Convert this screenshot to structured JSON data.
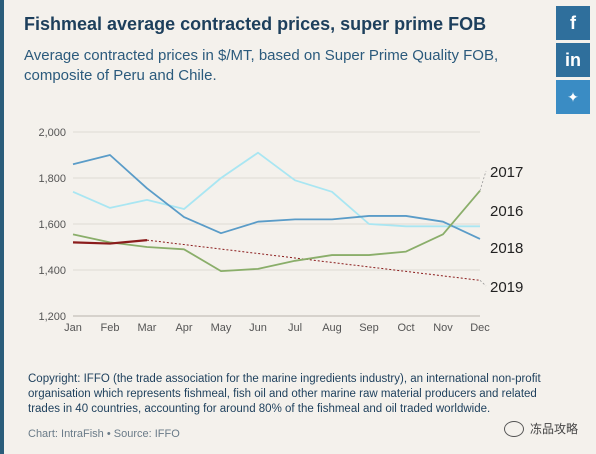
{
  "header": {
    "title": "Fishmeal average contracted prices, super prime FOB",
    "subtitle": "Average contracted prices in $/MT, based on Super Prime Quality FOB, composite of Peru and Chile."
  },
  "share": {
    "facebook": "f",
    "linkedin": "in",
    "twitter": "✦"
  },
  "chart_data": {
    "type": "line",
    "title": "Fishmeal average contracted prices, super prime FOB",
    "xlabel": "",
    "ylabel": "",
    "x": [
      "Jan",
      "Feb",
      "Mar",
      "Apr",
      "May",
      "Jun",
      "Jul",
      "Aug",
      "Sep",
      "Oct",
      "Nov",
      "Dec"
    ],
    "yticks": [
      "1,200",
      "1,400",
      "1,600",
      "1,800",
      "2,000"
    ],
    "ylim": [
      1200,
      2000
    ],
    "grid": true,
    "series": [
      {
        "name": "2017",
        "color": "#a9e6f2",
        "values": [
          1740,
          1670,
          1705,
          1665,
          1800,
          1910,
          1790,
          1740,
          1600,
          1590,
          1590,
          1590
        ]
      },
      {
        "name": "2016",
        "color": "#5a9cc8",
        "values": [
          1860,
          1900,
          1755,
          1630,
          1560,
          1610,
          1620,
          1620,
          1635,
          1635,
          1610,
          1535
        ]
      },
      {
        "name": "2018",
        "color": "#8aae6a",
        "values": [
          1555,
          1520,
          1500,
          1490,
          1395,
          1405,
          1440,
          1465,
          1465,
          1480,
          1555,
          1745
        ]
      },
      {
        "name": "2019",
        "color": "#8b1c1c",
        "values": [
          1520,
          1515,
          1530,
          null,
          null,
          null,
          null,
          null,
          null,
          null,
          null,
          null
        ]
      }
    ],
    "trend": {
      "color": "#8b1c1c",
      "from": [
        3,
        1530
      ],
      "to": [
        12,
        1355
      ]
    },
    "legend_order": [
      "2017",
      "2016",
      "2018",
      "2019"
    ]
  },
  "footer": {
    "note": "Copyright: IFFO (the trade association for the marine ingredients industry), an international non-profit organisation which represents fishmeal, fish oil and other marine raw material producers and related trades in 40 countries, accounting for around 80% of the fishmeal and oil traded worldwide.",
    "credit": "Chart: IntraFish • Source: IFFO",
    "watermark": "冻品攻略"
  }
}
